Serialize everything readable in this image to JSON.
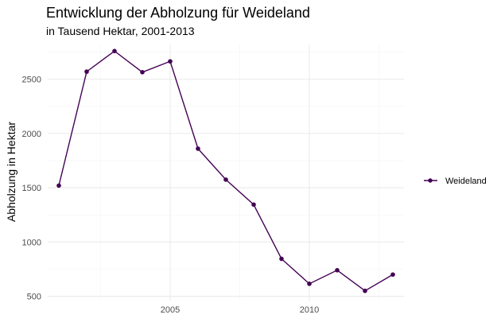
{
  "chart_data": {
    "type": "line",
    "title": "Entwicklung der Abholzung für Weideland",
    "subtitle": "in Tausend Hektar, 2001-2013",
    "xlabel": "",
    "ylabel": "Abholzung in Hektar",
    "x": [
      2001,
      2002,
      2003,
      2004,
      2005,
      2006,
      2007,
      2008,
      2009,
      2010,
      2011,
      2012,
      2013
    ],
    "series": [
      {
        "name": "Weideland",
        "color": "#440154",
        "values": [
          1520,
          2570,
          2760,
          2565,
          2665,
          1860,
          1575,
          1345,
          845,
          615,
          740,
          550,
          700
        ]
      }
    ],
    "xlim": [
      2000.6,
      2013.4
    ],
    "ylim": [
      460,
      2820
    ],
    "x_ticks": [
      2005,
      2010
    ],
    "x_tick_labels": [
      "2005",
      "2010"
    ],
    "y_ticks": [
      500,
      1000,
      1500,
      2000,
      2500
    ],
    "y_tick_labels": [
      "500",
      "1000",
      "1500",
      "2000",
      "2500"
    ],
    "grid": true,
    "legend_position": "right"
  }
}
